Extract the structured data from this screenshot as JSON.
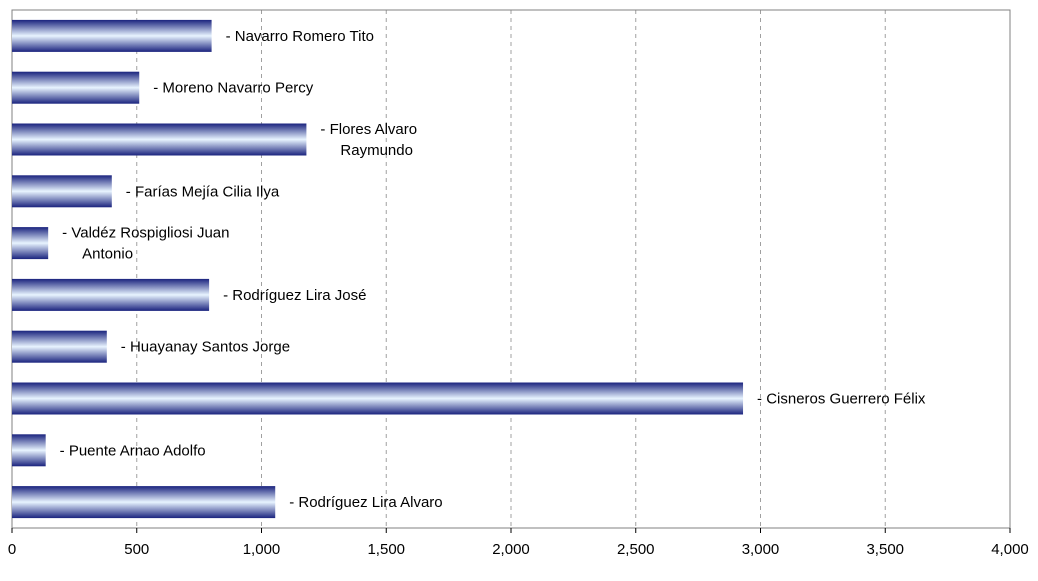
{
  "chart_data": {
    "type": "bar",
    "orientation": "horizontal",
    "title": "",
    "xlabel": "",
    "ylabel": "",
    "xlim": [
      0,
      4000
    ],
    "x_ticks": [
      0,
      500,
      1000,
      1500,
      2000,
      2500,
      3000,
      3500,
      4000
    ],
    "x_tick_labels": [
      "0",
      "500",
      "1,000",
      "1,500",
      "2,000",
      "2,500",
      "3,000",
      "3,500",
      "4,000"
    ],
    "grid": "vertical dashed",
    "legend": "none",
    "bar_gradient": [
      "#1a237e",
      "#e8f4ff"
    ],
    "categories": [
      {
        "label_lines": [
          "- Navarro Romero Tito"
        ],
        "value": 800
      },
      {
        "label_lines": [
          "- Moreno Navarro Percy"
        ],
        "value": 510
      },
      {
        "label_lines": [
          "- Flores  Alvaro",
          "Raymundo"
        ],
        "value": 1180
      },
      {
        "label_lines": [
          "- Farías Mejía Cilia Ilya"
        ],
        "value": 400
      },
      {
        "label_lines": [
          "- Valdéz Rospigliosi Juan",
          "Antonio"
        ],
        "value": 145
      },
      {
        "label_lines": [
          "- Rodríguez Lira José"
        ],
        "value": 790
      },
      {
        "label_lines": [
          "- Huayanay Santos Jorge"
        ],
        "value": 380
      },
      {
        "label_lines": [
          "- Cisneros Guerrero Félix"
        ],
        "value": 2930
      },
      {
        "label_lines": [
          "- Puente Arnao Adolfo"
        ],
        "value": 135
      },
      {
        "label_lines": [
          "- Rodríguez Lira Alvaro"
        ],
        "value": 1055
      }
    ]
  }
}
